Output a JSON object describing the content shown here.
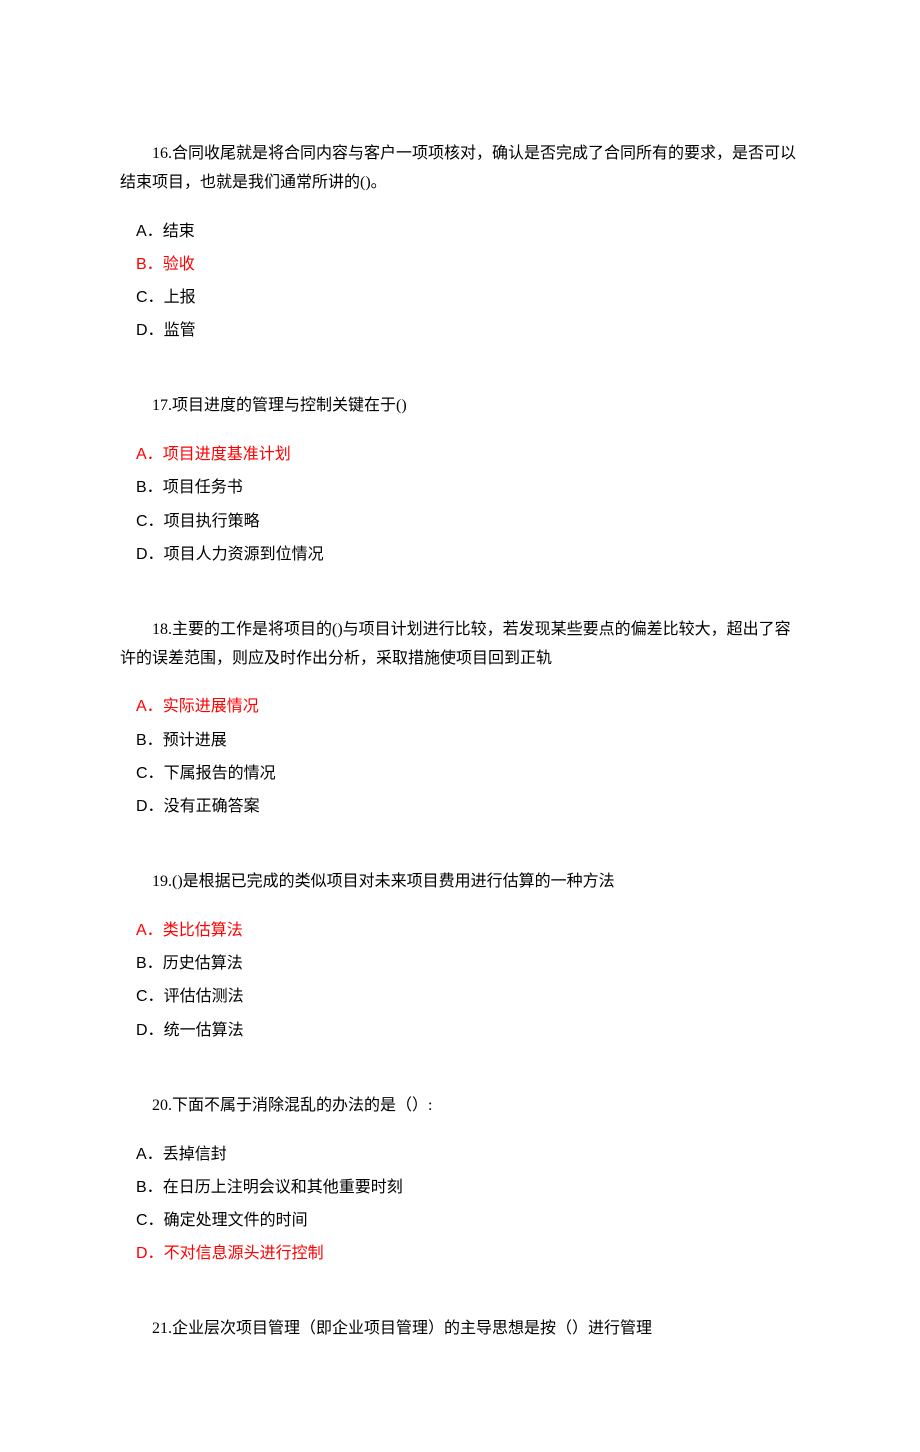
{
  "questions": [
    {
      "number": "16",
      "text": "合同收尾就是将合同内容与客户一项项核对，确认是否完成了合同所有的要求，是否可以结束项目，也就是我们通常所讲的()。",
      "options": [
        {
          "label": "A．",
          "text": "结束",
          "correct": false
        },
        {
          "label": "B．",
          "text": "验收",
          "correct": true
        },
        {
          "label": "C．",
          "text": "上报",
          "correct": false
        },
        {
          "label": "D．",
          "text": "监管",
          "correct": false
        }
      ]
    },
    {
      "number": "17",
      "text": "项目进度的管理与控制关键在于()",
      "options": [
        {
          "label": "A．",
          "text": "项目进度基准计划",
          "correct": true
        },
        {
          "label": "B．",
          "text": "项目任务书",
          "correct": false
        },
        {
          "label": "C．",
          "text": "项目执行策略",
          "correct": false
        },
        {
          "label": "D．",
          "text": "项目人力资源到位情况",
          "correct": false
        }
      ]
    },
    {
      "number": "18",
      "text": "主要的工作是将项目的()与项目计划进行比较，若发现某些要点的偏差比较大，超出了容许的误差范围，则应及时作出分析，采取措施使项目回到正轨",
      "options": [
        {
          "label": "A．",
          "text": "实际进展情况",
          "correct": true
        },
        {
          "label": "B．",
          "text": "预计进展",
          "correct": false
        },
        {
          "label": "C．",
          "text": "下属报告的情况",
          "correct": false
        },
        {
          "label": "D．",
          "text": "没有正确答案",
          "correct": false
        }
      ]
    },
    {
      "number": "19",
      "text": "()是根据已完成的类似项目对未来项目费用进行估算的一种方法",
      "options": [
        {
          "label": "A．",
          "text": "类比估算法",
          "correct": true
        },
        {
          "label": "B．",
          "text": "历史估算法",
          "correct": false
        },
        {
          "label": "C．",
          "text": "评估估测法",
          "correct": false
        },
        {
          "label": "D．",
          "text": "统一估算法",
          "correct": false
        }
      ]
    },
    {
      "number": "20",
      "text": "下面不属于消除混乱的办法的是（）:",
      "options": [
        {
          "label": "A．",
          "text": "丢掉信封",
          "correct": false
        },
        {
          "label": "B．",
          "text": "在日历上注明会议和其他重要时刻",
          "correct": false
        },
        {
          "label": "C．",
          "text": "确定处理文件的时间",
          "correct": false
        },
        {
          "label": "D．",
          "text": "不对信息源头进行控制",
          "correct": true
        }
      ]
    },
    {
      "number": "21",
      "text": "企业层次项目管理（即企业项目管理）的主导思想是按（）进行管理",
      "options": []
    }
  ]
}
